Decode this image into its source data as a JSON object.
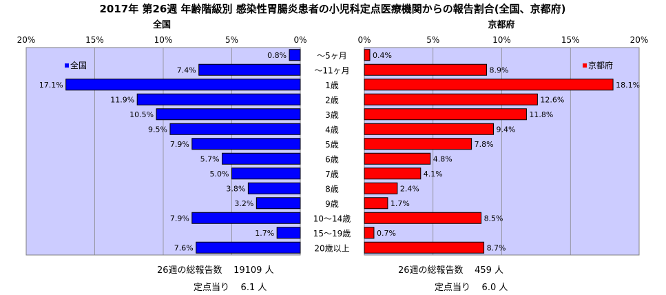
{
  "title": "2017年 第26週 年齢階級別 感染性胃腸炎患者の小児科定点医療機関からの報告割合(全国、京都府)",
  "categories": [
    "～5ヶ月",
    "～11ヶ月",
    "1歳",
    "2歳",
    "3歳",
    "4歳",
    "5歳",
    "6歳",
    "7歳",
    "8歳",
    "9歳",
    "10～14歳",
    "15～19歳",
    "20歳以上"
  ],
  "colors": {
    "national": "#0000ff",
    "kyoto": "#ff0000",
    "plot_bg": "#ccccff"
  },
  "chart_data": [
    {
      "type": "bar",
      "orientation": "horizontal",
      "title": "全国",
      "xlim": [
        0,
        20
      ],
      "x_reversed": true,
      "ticks": [
        "20%",
        "15%",
        "10%",
        "5%",
        "0%"
      ],
      "legend": "全国",
      "legend_position": "top-left",
      "series": [
        {
          "name": "全国",
          "values": [
            0.8,
            7.4,
            17.1,
            11.9,
            10.5,
            9.5,
            7.9,
            5.7,
            5.0,
            3.8,
            3.2,
            7.9,
            1.7,
            7.6
          ],
          "labels": [
            "0.8%",
            "7.4%",
            "17.1%",
            "11.9%",
            "10.5%",
            "9.5%",
            "7.9%",
            "5.7%",
            "5.0%",
            "3.8%",
            "3.2%",
            "7.9%",
            "1.7%",
            "7.6%"
          ]
        }
      ]
    },
    {
      "type": "bar",
      "orientation": "horizontal",
      "title": "京都府",
      "xlim": [
        0,
        20
      ],
      "x_reversed": false,
      "ticks": [
        "0%",
        "5%",
        "10%",
        "15%",
        "20%"
      ],
      "legend": "京都府",
      "legend_position": "top-right",
      "series": [
        {
          "name": "京都府",
          "values": [
            0.4,
            8.9,
            18.1,
            12.6,
            11.8,
            9.4,
            7.8,
            4.8,
            4.1,
            2.4,
            1.7,
            8.5,
            0.7,
            8.7
          ],
          "labels": [
            "0.4%",
            "8.9%",
            "18.1%",
            "12.6%",
            "11.8%",
            "9.4%",
            "7.8%",
            "4.8%",
            "4.1%",
            "2.4%",
            "1.7%",
            "8.5%",
            "0.7%",
            "8.7%"
          ]
        }
      ]
    }
  ],
  "footer": {
    "national": {
      "total_label": "26週の総報告数",
      "total_value": "19109 人",
      "per_label": "定点当り",
      "per_value": "6.1 人"
    },
    "kyoto": {
      "total_label": "26週の総報告数",
      "total_value": "459 人",
      "per_label": "定点当り",
      "per_value": "6.0 人"
    }
  }
}
